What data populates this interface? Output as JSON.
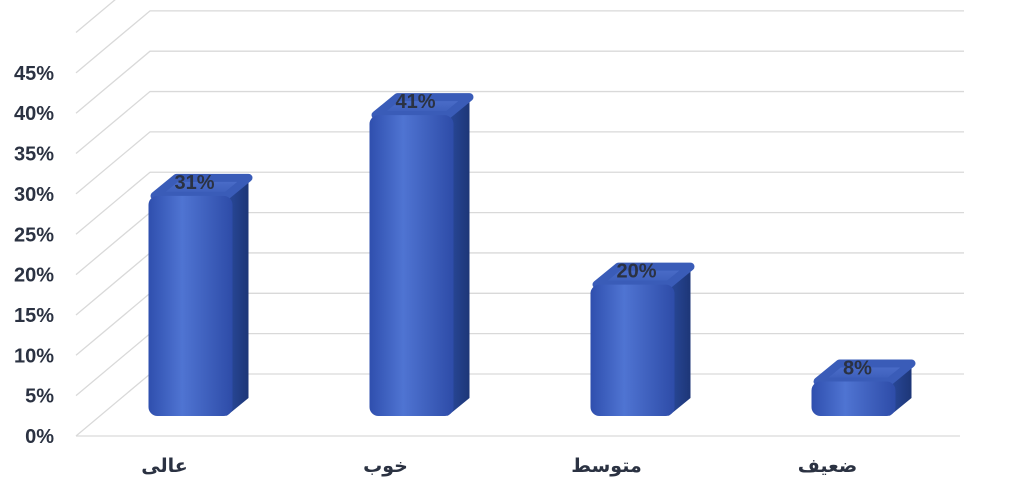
{
  "chart_data": {
    "type": "bar",
    "style": "3d-cylinder",
    "categories": [
      "عالی",
      "خوب",
      "متوسط",
      "ضعیف"
    ],
    "values": [
      31,
      41,
      20,
      8
    ],
    "data_labels": [
      "31%",
      "41%",
      "20%",
      "8%"
    ],
    "y_ticks": [
      "0%",
      "5%",
      "10%",
      "15%",
      "20%",
      "25%",
      "30%",
      "35%",
      "40%",
      "45%"
    ],
    "ylim": [
      0,
      50
    ],
    "grid": true,
    "legend": "none",
    "colors": {
      "bar": "#3f63c3",
      "bar_side": "#23418d",
      "gridline": "#d9d9d9",
      "text": "#2b3242"
    }
  }
}
